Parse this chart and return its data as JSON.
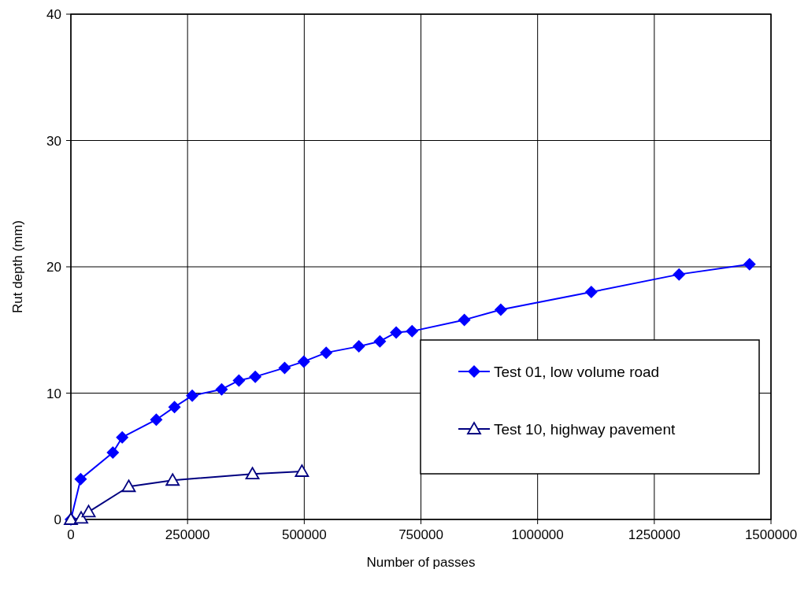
{
  "chart_data": {
    "type": "line",
    "xlabel": "Number of passes",
    "ylabel": "Rut depth (mm)",
    "xlim": [
      0,
      1500000
    ],
    "xticks": [
      0,
      250000,
      500000,
      750000,
      1000000,
      1250000,
      1500000
    ],
    "ylim": [
      0,
      40
    ],
    "yticks": [
      0,
      10,
      20,
      30,
      40
    ],
    "grid": true,
    "legend": "bottom right",
    "series": [
      {
        "name": "Test 01, low volume road",
        "color": "#0000ff",
        "marker": "diamond",
        "x": [
          0,
          21000,
          90000,
          110000,
          183000,
          222000,
          260000,
          323000,
          360000,
          395000,
          458000,
          499000,
          547000,
          617000,
          662000,
          697000,
          731000,
          843000,
          921000,
          1115000,
          1303000,
          1454000
        ],
        "values": [
          0,
          3.2,
          5.3,
          6.5,
          7.9,
          8.9,
          9.8,
          10.3,
          11.0,
          11.3,
          12.0,
          12.5,
          13.2,
          13.7,
          14.1,
          14.8,
          14.9,
          15.8,
          16.6,
          18.0,
          19.4,
          20.2
        ]
      },
      {
        "name": "Test 10, highway pavement",
        "color": "#000080",
        "marker": "triangle",
        "x": [
          0,
          22000,
          38000,
          124000,
          218000,
          389000,
          495000
        ],
        "values": [
          0,
          0.1,
          0.6,
          2.6,
          3.1,
          3.6,
          3.8
        ]
      }
    ]
  }
}
